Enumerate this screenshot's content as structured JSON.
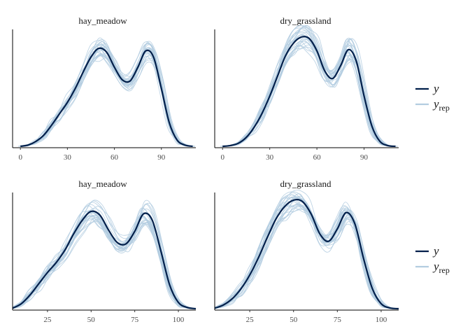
{
  "chart_data": [
    {
      "type": "line",
      "title": "hay_meadow",
      "xlim": [
        -5,
        112
      ],
      "xticks": [
        0,
        30,
        60,
        90
      ],
      "y_ticks_shown": false,
      "y": {
        "x": [
          0,
          5,
          10,
          15,
          20,
          25,
          30,
          35,
          40,
          45,
          50,
          55,
          60,
          65,
          70,
          75,
          80,
          85,
          90,
          95,
          100,
          105,
          110
        ],
        "values": [
          0.0,
          0.05,
          0.2,
          0.45,
          0.85,
          1.3,
          1.75,
          2.3,
          2.95,
          3.55,
          3.9,
          3.75,
          3.15,
          2.65,
          2.6,
          3.15,
          3.8,
          3.55,
          2.3,
          0.95,
          0.25,
          0.05,
          0.0
        ]
      },
      "y_rep_count": 25
    },
    {
      "type": "line",
      "title": "dry_grassland",
      "xlim": [
        -5,
        112
      ],
      "xticks": [
        0,
        30,
        60,
        90
      ],
      "y_ticks_shown": false,
      "y": {
        "x": [
          0,
          5,
          10,
          15,
          20,
          25,
          30,
          35,
          40,
          45,
          50,
          55,
          60,
          65,
          70,
          75,
          80,
          85,
          90,
          95,
          100,
          105,
          110
        ],
        "values": [
          0.0,
          0.03,
          0.12,
          0.35,
          0.75,
          1.3,
          2.0,
          2.8,
          3.6,
          4.1,
          4.35,
          4.3,
          3.8,
          3.0,
          2.7,
          3.2,
          3.85,
          3.4,
          2.0,
          0.8,
          0.2,
          0.03,
          0.0
        ]
      },
      "y_rep_count": 25
    },
    {
      "type": "line",
      "title": "hay_meadow",
      "xlim": [
        5,
        110
      ],
      "xticks": [
        25,
        50,
        75,
        100
      ],
      "y_ticks_shown": false,
      "y": {
        "x": [
          5,
          10,
          15,
          20,
          25,
          30,
          35,
          40,
          45,
          50,
          55,
          60,
          65,
          70,
          75,
          80,
          85,
          90,
          95,
          100,
          105,
          110
        ],
        "values": [
          0.02,
          0.2,
          0.55,
          1.0,
          1.45,
          1.85,
          2.35,
          3.0,
          3.55,
          3.9,
          3.75,
          3.15,
          2.65,
          2.6,
          3.1,
          3.8,
          3.55,
          2.3,
          0.95,
          0.25,
          0.05,
          0.0
        ]
      },
      "y_rep_count": 25
    },
    {
      "type": "line",
      "title": "dry_grassland",
      "xlim": [
        5,
        110
      ],
      "xticks": [
        25,
        50,
        75,
        100
      ],
      "y_ticks_shown": false,
      "y": {
        "x": [
          5,
          10,
          15,
          20,
          25,
          30,
          35,
          40,
          45,
          50,
          55,
          60,
          65,
          70,
          75,
          80,
          85,
          90,
          95,
          100,
          105,
          110
        ],
        "values": [
          0.02,
          0.15,
          0.4,
          0.8,
          1.35,
          2.05,
          2.85,
          3.6,
          4.1,
          4.35,
          4.3,
          3.8,
          3.0,
          2.7,
          3.2,
          3.85,
          3.4,
          2.0,
          0.8,
          0.2,
          0.03,
          0.0
        ]
      },
      "y_rep_count": 25
    }
  ],
  "legend": {
    "position": "right",
    "items": [
      {
        "label": "y",
        "subscript": "",
        "color": "#011f4b"
      },
      {
        "label": "y",
        "subscript": "rep",
        "color": "#b3cde0"
      }
    ]
  },
  "colors": {
    "y": "#011f4b",
    "y_rep": "#b3cde0",
    "axis": "#000000"
  }
}
